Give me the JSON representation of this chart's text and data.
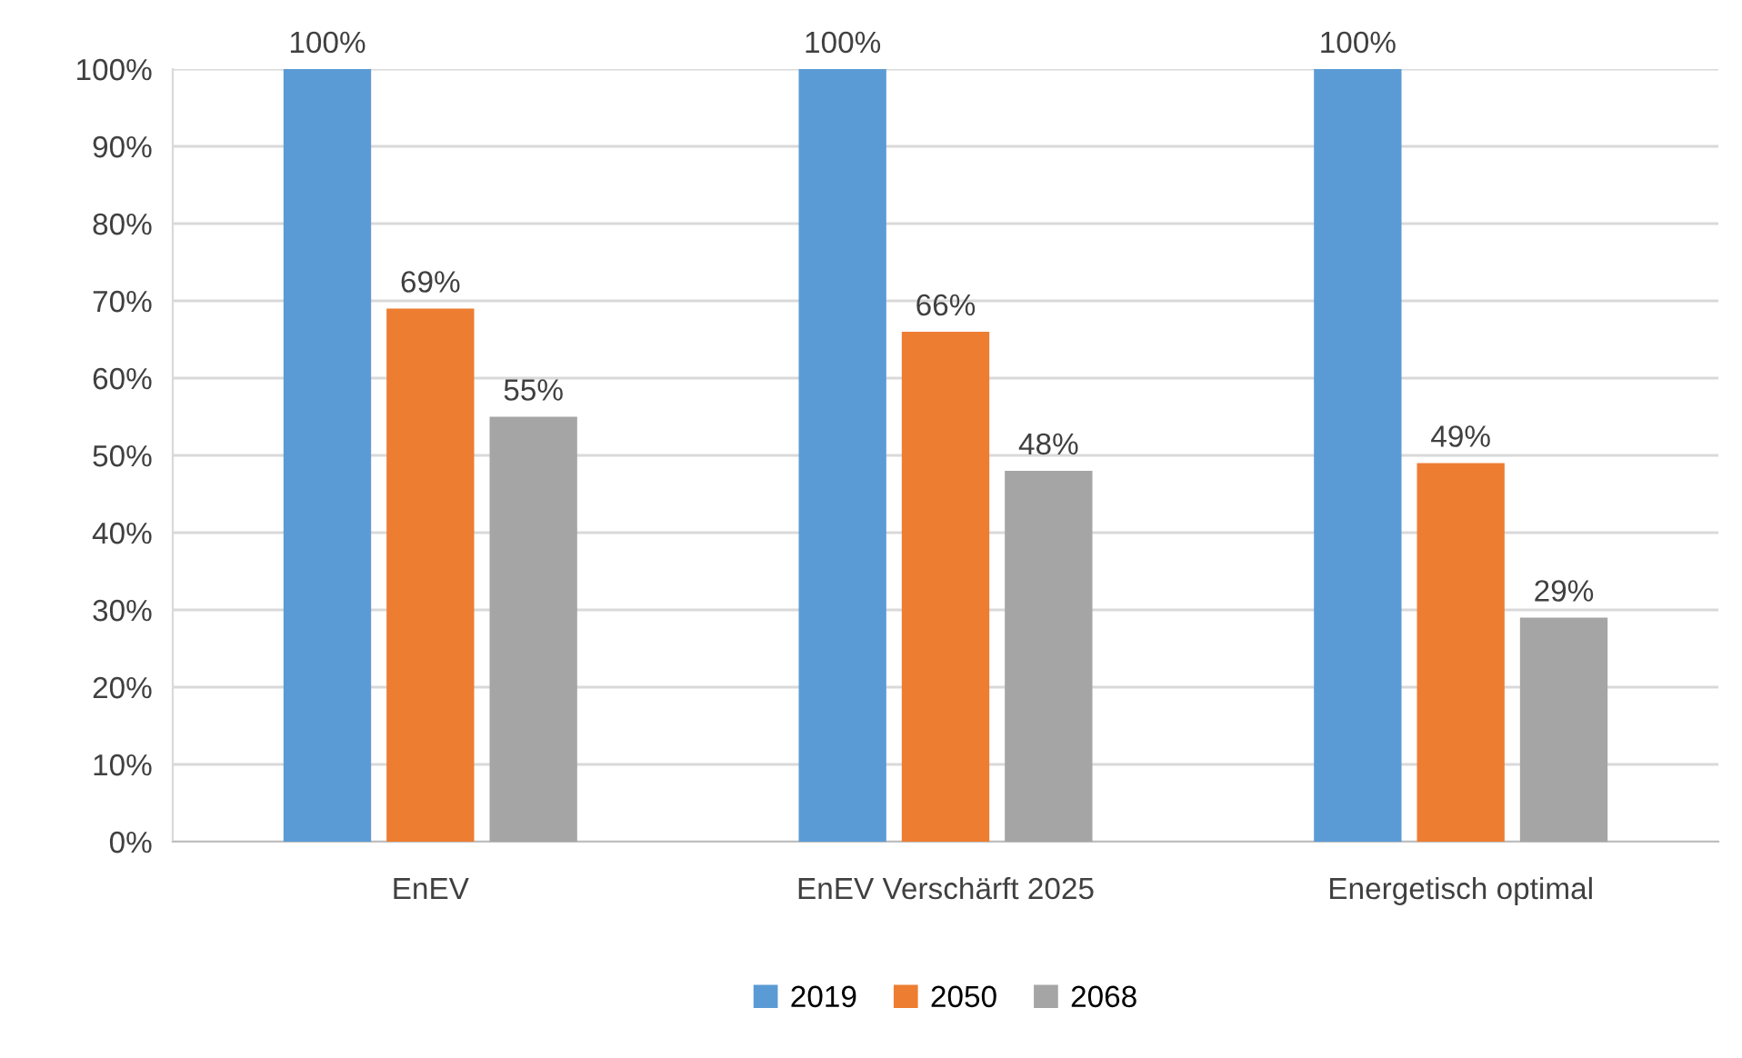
{
  "chart_data": {
    "type": "bar",
    "categories": [
      "EnEV",
      "EnEV Verschärft 2025",
      "Energetisch optimal"
    ],
    "series": [
      {
        "name": "2019",
        "color": "#5b9bd5",
        "values": [
          100,
          100,
          100
        ],
        "value_labels": [
          "100%",
          "100%",
          "100%"
        ]
      },
      {
        "name": "2050",
        "color": "#ed7d31",
        "values": [
          69,
          66,
          49
        ],
        "value_labels": [
          "69%",
          "66%",
          "49%"
        ]
      },
      {
        "name": "2068",
        "color": "#a5a5a5",
        "values": [
          55,
          48,
          29
        ],
        "value_labels": [
          "55%",
          "48%",
          "29%"
        ]
      }
    ],
    "ylim": [
      0,
      100
    ],
    "yticks": [
      {
        "value": 0,
        "label": "0%"
      },
      {
        "value": 10,
        "label": "10%"
      },
      {
        "value": 20,
        "label": "20%"
      },
      {
        "value": 30,
        "label": "30%"
      },
      {
        "value": 40,
        "label": "40%"
      },
      {
        "value": 50,
        "label": "50%"
      },
      {
        "value": 60,
        "label": "60%"
      },
      {
        "value": 70,
        "label": "70%"
      },
      {
        "value": 80,
        "label": "80%"
      },
      {
        "value": 90,
        "label": "90%"
      },
      {
        "value": 100,
        "label": "100%"
      }
    ],
    "grid": "y",
    "legend": "bottom"
  }
}
